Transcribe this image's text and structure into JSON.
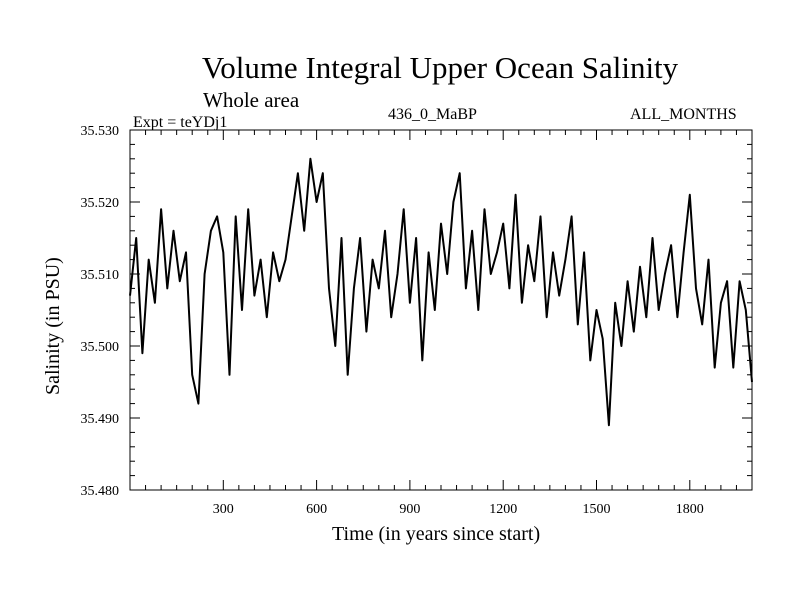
{
  "chart_data": {
    "type": "line",
    "title": "Volume Integral Upper Ocean Salinity",
    "subtitle": "Whole area",
    "experiment": "Expt = teYDj1",
    "period": "436_0_MaBP",
    "months": "ALL_MONTHS",
    "xlabel": "Time (in years since start)",
    "ylabel": "Salinity (in PSU)",
    "xlim": [
      0,
      2000
    ],
    "ylim": [
      35.48,
      35.53
    ],
    "xticks": [
      300,
      600,
      900,
      1200,
      1500,
      1800
    ],
    "xtick_labels": [
      "300",
      "600",
      "900",
      "1200",
      "1500",
      "1800"
    ],
    "yticks": [
      35.48,
      35.49,
      35.5,
      35.51,
      35.52,
      35.53
    ],
    "ytick_labels": [
      "35.480",
      "35.490",
      "35.500",
      "35.510",
      "35.520",
      "35.530"
    ],
    "grid": false,
    "series": [
      {
        "name": "Salinity",
        "x": [
          0,
          20,
          40,
          60,
          80,
          100,
          120,
          140,
          160,
          180,
          200,
          220,
          240,
          260,
          280,
          300,
          320,
          340,
          360,
          380,
          400,
          420,
          440,
          460,
          480,
          500,
          520,
          540,
          560,
          580,
          600,
          620,
          640,
          660,
          680,
          700,
          720,
          740,
          760,
          780,
          800,
          820,
          840,
          860,
          880,
          900,
          920,
          940,
          960,
          980,
          1000,
          1020,
          1040,
          1060,
          1080,
          1100,
          1120,
          1140,
          1160,
          1180,
          1200,
          1220,
          1240,
          1260,
          1280,
          1300,
          1320,
          1340,
          1360,
          1380,
          1400,
          1420,
          1440,
          1460,
          1480,
          1500,
          1520,
          1540,
          1560,
          1580,
          1600,
          1620,
          1640,
          1660,
          1680,
          1700,
          1720,
          1740,
          1760,
          1780,
          1800,
          1820,
          1840,
          1860,
          1880,
          1900,
          1920,
          1940,
          1960,
          1980,
          2000
        ],
        "values": [
          35.507,
          35.515,
          35.499,
          35.512,
          35.506,
          35.519,
          35.508,
          35.516,
          35.509,
          35.513,
          35.496,
          35.492,
          35.51,
          35.516,
          35.518,
          35.513,
          35.496,
          35.518,
          35.505,
          35.519,
          35.507,
          35.512,
          35.504,
          35.513,
          35.509,
          35.512,
          35.518,
          35.524,
          35.516,
          35.526,
          35.52,
          35.524,
          35.508,
          35.5,
          35.515,
          35.496,
          35.508,
          35.515,
          35.502,
          35.512,
          35.508,
          35.516,
          35.504,
          35.51,
          35.519,
          35.506,
          35.515,
          35.498,
          35.513,
          35.505,
          35.517,
          35.51,
          35.52,
          35.524,
          35.508,
          35.516,
          35.505,
          35.519,
          35.51,
          35.513,
          35.517,
          35.508,
          35.521,
          35.506,
          35.514,
          35.509,
          35.518,
          35.504,
          35.513,
          35.507,
          35.512,
          35.518,
          35.503,
          35.513,
          35.498,
          35.505,
          35.501,
          35.489,
          35.506,
          35.5,
          35.509,
          35.502,
          35.511,
          35.504,
          35.515,
          35.505,
          35.51,
          35.514,
          35.504,
          35.513,
          35.521,
          35.508,
          35.503,
          35.512,
          35.497,
          35.506,
          35.509,
          35.497,
          35.509,
          35.505,
          35.495
        ]
      }
    ]
  }
}
